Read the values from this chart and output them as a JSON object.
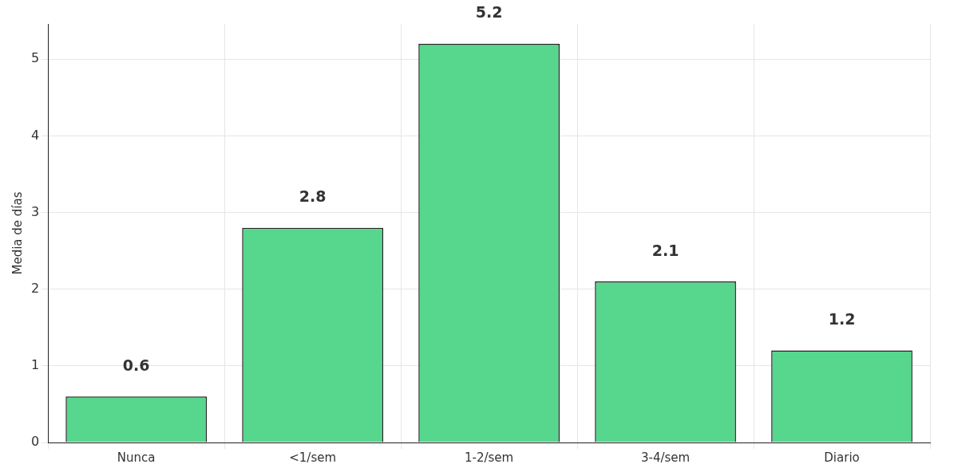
{
  "chart_data": {
    "type": "bar",
    "ylabel": "Media de días",
    "categories": [
      "Nunca",
      "<1/sem",
      "1-2/sem",
      "3-4/sem",
      "Diario"
    ],
    "values": [
      0.6,
      2.8,
      5.2,
      2.1,
      1.2
    ],
    "color": "#57d68d",
    "ylim": [
      0,
      5.46
    ],
    "yticks": [
      0,
      1,
      2,
      3,
      4,
      5
    ],
    "grid": true,
    "data_labels": true
  }
}
